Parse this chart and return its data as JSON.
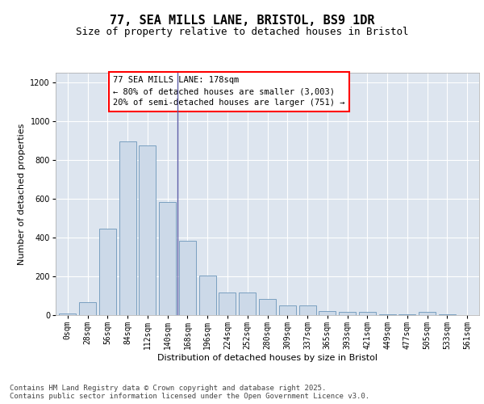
{
  "title1": "77, SEA MILLS LANE, BRISTOL, BS9 1DR",
  "title2": "Size of property relative to detached houses in Bristol",
  "xlabel": "Distribution of detached houses by size in Bristol",
  "ylabel": "Number of detached properties",
  "bar_color": "#ccd9e8",
  "bar_edge_color": "#7aa0c0",
  "background_color": "#dde5ef",
  "categories": [
    "0sqm",
    "28sqm",
    "56sqm",
    "84sqm",
    "112sqm",
    "140sqm",
    "168sqm",
    "196sqm",
    "224sqm",
    "252sqm",
    "280sqm",
    "309sqm",
    "337sqm",
    "365sqm",
    "393sqm",
    "421sqm",
    "449sqm",
    "477sqm",
    "505sqm",
    "533sqm",
    "561sqm"
  ],
  "values": [
    8,
    65,
    445,
    895,
    875,
    585,
    385,
    205,
    115,
    115,
    85,
    50,
    50,
    22,
    15,
    15,
    5,
    5,
    15,
    3,
    2
  ],
  "ylim": [
    0,
    1250
  ],
  "yticks": [
    0,
    200,
    400,
    600,
    800,
    1000,
    1200
  ],
  "annotation_text": "77 SEA MILLS LANE: 178sqm\n← 80% of detached houses are smaller (3,003)\n20% of semi-detached houses are larger (751) →",
  "footnote": "Contains HM Land Registry data © Crown copyright and database right 2025.\nContains public sector information licensed under the Open Government Licence v3.0.",
  "title_fontsize": 11,
  "subtitle_fontsize": 9,
  "axis_label_fontsize": 8,
  "tick_fontsize": 7,
  "annotation_fontsize": 7.5,
  "footnote_fontsize": 6.5
}
